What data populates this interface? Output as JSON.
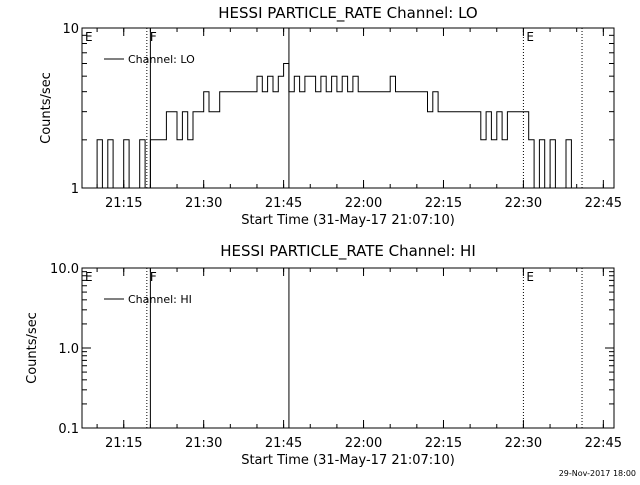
{
  "chart_data": [
    {
      "type": "line",
      "title": "HESSI PARTICLE_RATE Channel: LO",
      "xlabel": "Start Time (31-May-17 21:07:10)",
      "ylabel": "Counts/sec",
      "yscale": "log",
      "ylim": [
        1,
        10
      ],
      "ytick_labels": [
        "1",
        "10"
      ],
      "xlim": [
        "21:07:10",
        "22:47:00"
      ],
      "xtick_labels": [
        "21:15",
        "21:30",
        "21:45",
        "22:00",
        "22:15",
        "22:30",
        "22:45"
      ],
      "grid": false,
      "legend": {
        "placement": "top-left",
        "entries": [
          "Channel: LO"
        ]
      },
      "series": [
        {
          "name": "Channel: LO",
          "x": [
            "21:09:00",
            "21:10:00",
            "21:11:00",
            "21:12:00",
            "21:13:00",
            "21:14:00",
            "21:15:00",
            "21:16:00",
            "21:17:00",
            "21:18:00",
            "21:19:00",
            "21:20:00",
            "21:21:00",
            "21:22:00",
            "21:23:00",
            "21:24:00",
            "21:25:00",
            "21:26:00",
            "21:27:00",
            "21:28:00",
            "21:29:00",
            "21:30:00",
            "21:31:00",
            "21:32:00",
            "21:33:00",
            "21:34:00",
            "21:35:00",
            "21:36:00",
            "21:37:00",
            "21:38:00",
            "21:39:00",
            "21:40:00",
            "21:41:00",
            "21:42:00",
            "21:43:00",
            "21:44:00",
            "21:45:00",
            "21:46:00",
            "21:47:00",
            "21:48:00",
            "21:49:00",
            "21:50:00",
            "21:51:00",
            "21:52:00",
            "21:53:00",
            "21:54:00",
            "21:55:00",
            "21:56:00",
            "21:57:00",
            "21:58:00",
            "21:59:00",
            "22:00:00",
            "22:01:00",
            "22:02:00",
            "22:03:00",
            "22:04:00",
            "22:05:00",
            "22:06:00",
            "22:07:00",
            "22:08:00",
            "22:09:00",
            "22:10:00",
            "22:11:00",
            "22:12:00",
            "22:13:00",
            "22:14:00",
            "22:15:00",
            "22:16:00",
            "22:17:00",
            "22:18:00",
            "22:19:00",
            "22:20:00",
            "22:21:00",
            "22:22:00",
            "22:23:00",
            "22:24:00",
            "22:25:00",
            "22:26:00",
            "22:27:00",
            "22:28:00",
            "22:29:00",
            "22:30:00",
            "22:31:00",
            "22:32:00",
            "22:33:00",
            "22:34:00",
            "22:35:00",
            "22:36:00",
            "22:37:00",
            "22:38:00",
            "22:39:00",
            "22:40:00"
          ],
          "values": [
            1,
            2,
            1,
            2,
            1,
            1,
            2,
            1,
            1,
            2,
            1,
            2,
            2,
            2,
            3,
            3,
            2,
            3,
            2,
            3,
            3,
            4,
            3,
            3,
            4,
            4,
            4,
            4,
            4,
            4,
            4,
            5,
            4,
            5,
            4,
            5,
            6,
            4,
            5,
            4,
            5,
            5,
            4,
            5,
            4,
            5,
            4,
            5,
            4,
            5,
            4,
            4,
            4,
            4,
            4,
            4,
            5,
            4,
            4,
            4,
            4,
            4,
            4,
            3,
            4,
            3,
            3,
            3,
            3,
            3,
            3,
            3,
            3,
            2,
            3,
            2,
            3,
            2,
            3,
            3,
            3,
            3,
            2,
            1,
            2,
            1,
            2,
            1,
            1,
            2,
            1,
            1
          ]
        }
      ],
      "annotations": [
        {
          "label": "E",
          "x": "21:07:10",
          "style": "dotted"
        },
        {
          "label": "F",
          "x": "21:19:20",
          "style": "dotted"
        },
        {
          "label": "",
          "x": "21:20:00",
          "style": "solid"
        },
        {
          "label": "",
          "x": "21:46:00",
          "style": "solid"
        },
        {
          "label": "E",
          "x": "22:30:00",
          "style": "dotted"
        },
        {
          "label": "",
          "x": "22:41:00",
          "style": "dotted"
        }
      ]
    },
    {
      "type": "line",
      "title": "HESSI PARTICLE_RATE Channel: HI",
      "xlabel": "Start Time (31-May-17 21:07:10)",
      "ylabel": "Counts/sec",
      "yscale": "log",
      "ylim": [
        0.1,
        10
      ],
      "ytick_labels": [
        "0.1",
        "1.0",
        "10.0"
      ],
      "xlim": [
        "21:07:10",
        "22:47:00"
      ],
      "xtick_labels": [
        "21:15",
        "21:30",
        "21:45",
        "22:00",
        "22:15",
        "22:30",
        "22:45"
      ],
      "grid": false,
      "legend": {
        "placement": "top-left",
        "entries": [
          "Channel: HI"
        ]
      },
      "series": [
        {
          "name": "Channel: HI",
          "x": [],
          "values": []
        }
      ],
      "annotations": [
        {
          "label": "E",
          "x": "21:07:10",
          "style": "dotted"
        },
        {
          "label": "F",
          "x": "21:19:20",
          "style": "dotted"
        },
        {
          "label": "",
          "x": "21:20:00",
          "style": "solid"
        },
        {
          "label": "",
          "x": "21:46:00",
          "style": "solid"
        },
        {
          "label": "E",
          "x": "22:30:00",
          "style": "dotted"
        },
        {
          "label": "",
          "x": "22:41:00",
          "style": "dotted"
        }
      ]
    }
  ],
  "footer": {
    "timestamp": "29-Nov-2017 18:00"
  },
  "colors": {
    "foreground": "#000000",
    "background": "#ffffff"
  }
}
